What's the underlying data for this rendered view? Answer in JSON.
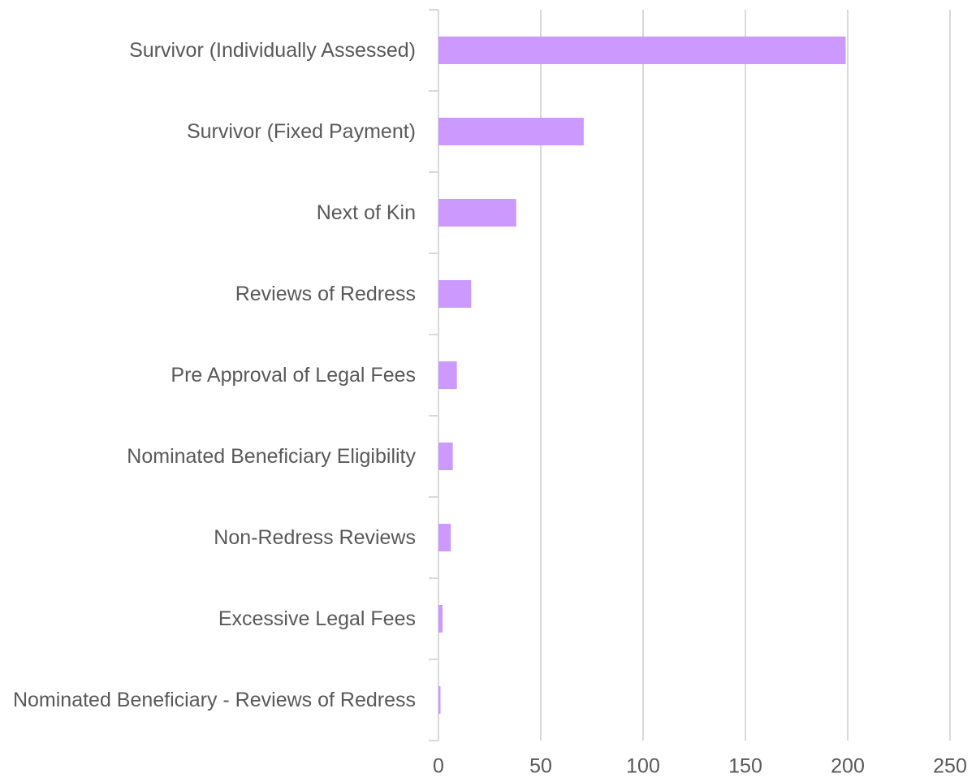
{
  "chart_data": {
    "type": "bar",
    "orientation": "horizontal",
    "categories": [
      "Survivor (Individually Assessed)",
      "Survivor (Fixed Payment)",
      "Next of Kin",
      "Reviews of Redress",
      "Pre Approval of Legal Fees",
      "Nominated Beneficiary Eligibility",
      "Non-Redress Reviews",
      "Excessive Legal Fees",
      "Nominated Beneficiary - Reviews of Redress"
    ],
    "values": [
      199,
      71,
      38,
      16,
      9,
      7,
      6,
      2,
      1
    ],
    "color": "#cc99ff",
    "xlim": [
      0,
      250
    ],
    "xticks": [
      0,
      50,
      100,
      150,
      200,
      250
    ],
    "grid": true
  }
}
